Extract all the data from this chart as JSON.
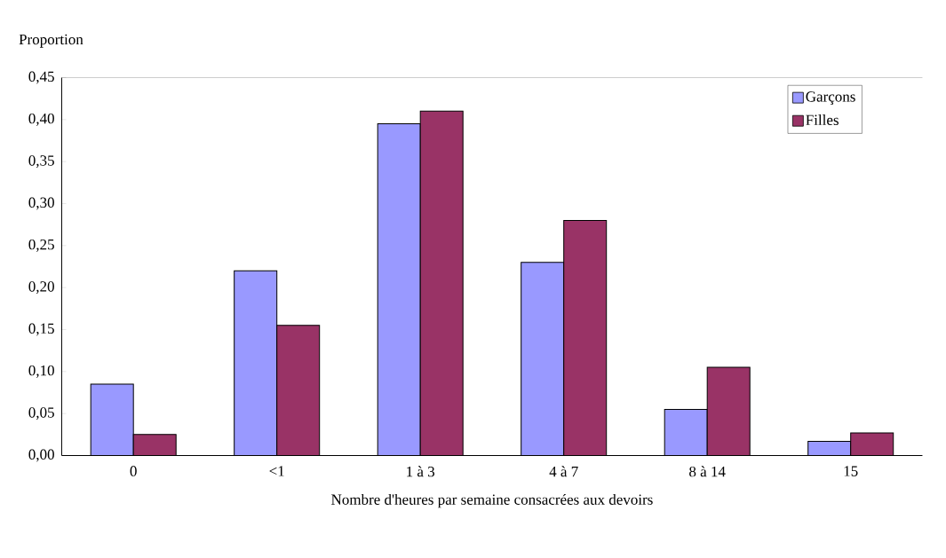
{
  "chart_data": {
    "type": "bar",
    "ylabel": "Proportion",
    "xlabel": "Nombre d'heures par semaine consacrées aux devoirs",
    "categories": [
      "0",
      "<1",
      "1 à 3",
      "4 à 7",
      "8 à 14",
      "15"
    ],
    "series": [
      {
        "name": "Garçons",
        "color": "#9999ff",
        "values": [
          0.085,
          0.22,
          0.395,
          0.23,
          0.055,
          0.017
        ]
      },
      {
        "name": "Filles",
        "color": "#993366",
        "values": [
          0.025,
          0.155,
          0.41,
          0.28,
          0.105,
          0.027
        ]
      }
    ],
    "ylim": [
      0,
      0.45
    ],
    "yticks": [
      {
        "value": 0,
        "label": "0,00"
      },
      {
        "value": 0.05,
        "label": "0,05"
      },
      {
        "value": 0.1,
        "label": "0,10"
      },
      {
        "value": 0.15,
        "label": "0,15"
      },
      {
        "value": 0.2,
        "label": "0,20"
      },
      {
        "value": 0.25,
        "label": "0,25"
      },
      {
        "value": 0.3,
        "label": "0,30"
      },
      {
        "value": 0.35,
        "label": "0,35"
      },
      {
        "value": 0.4,
        "label": "0,40"
      },
      {
        "value": 0.45,
        "label": "0,45"
      }
    ],
    "grid": false,
    "legend": "top right"
  }
}
